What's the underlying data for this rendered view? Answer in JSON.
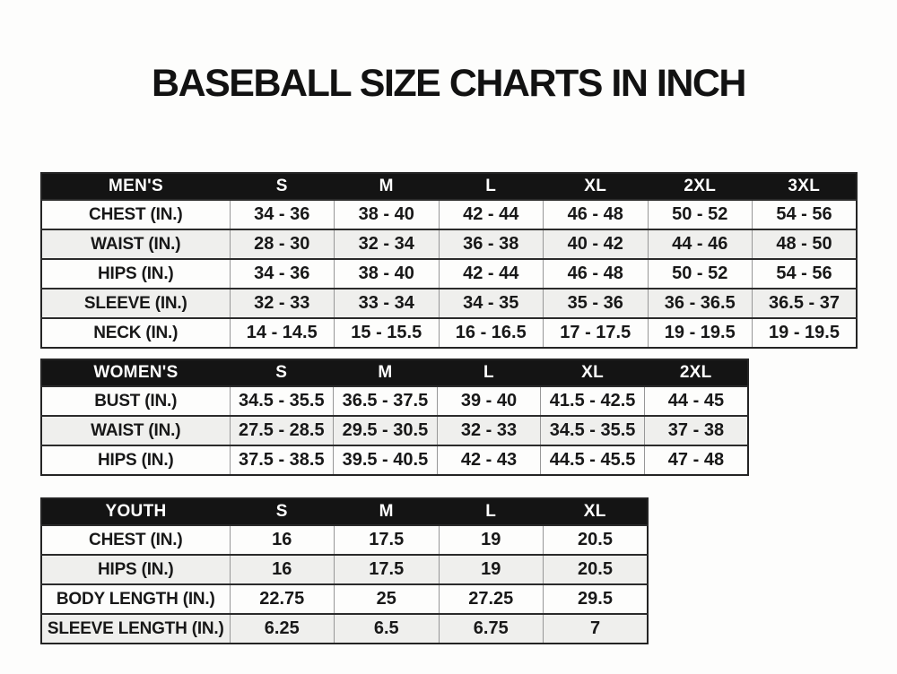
{
  "page": {
    "title": "BASEBALL SIZE CHARTS IN INCH"
  },
  "colors": {
    "page_bg": "#fdfdfc",
    "title_text": "#121212",
    "header_bg": "#141414",
    "header_text": "#ffffff",
    "row_bg": "#fdfdfc",
    "row_alt_bg": "#efefed",
    "cell_text": "#181818",
    "border_dark": "#2b2b2b",
    "border_light": "#979797"
  },
  "chart_data": [
    {
      "type": "table",
      "title": "MEN'S",
      "columns": [
        "S",
        "M",
        "L",
        "XL",
        "2XL",
        "3XL"
      ],
      "rows": [
        {
          "label": "CHEST (IN.)",
          "values": [
            "34 - 36",
            "38 - 40",
            "42 - 44",
            "46 - 48",
            "50 - 52",
            "54 - 56"
          ]
        },
        {
          "label": "WAIST (IN.)",
          "values": [
            "28 - 30",
            "32 - 34",
            "36 - 38",
            "40 - 42",
            "44 - 46",
            "48 - 50"
          ]
        },
        {
          "label": "HIPS (IN.)",
          "values": [
            "34 - 36",
            "38 - 40",
            "42 - 44",
            "46 - 48",
            "50 - 52",
            "54 - 56"
          ]
        },
        {
          "label": "SLEEVE (IN.)",
          "values": [
            "32 - 33",
            "33 - 34",
            "34 - 35",
            "35 - 36",
            "36 - 36.5",
            "36.5 - 37"
          ]
        },
        {
          "label": "NECK (IN.)",
          "values": [
            "14 - 14.5",
            "15 - 15.5",
            "16 - 16.5",
            "17 - 17.5",
            "19 - 19.5",
            "19 - 19.5"
          ]
        }
      ]
    },
    {
      "type": "table",
      "title": "WOMEN'S",
      "columns": [
        "S",
        "M",
        "L",
        "XL",
        "2XL"
      ],
      "rows": [
        {
          "label": "BUST (IN.)",
          "values": [
            "34.5 - 35.5",
            "36.5 - 37.5",
            "39 - 40",
            "41.5 - 42.5",
            "44 - 45"
          ]
        },
        {
          "label": "WAIST (IN.)",
          "values": [
            "27.5 - 28.5",
            "29.5 - 30.5",
            "32 - 33",
            "34.5 - 35.5",
            "37 - 38"
          ]
        },
        {
          "label": "HIPS (IN.)",
          "values": [
            "37.5 - 38.5",
            "39.5 - 40.5",
            "42 - 43",
            "44.5 - 45.5",
            "47 - 48"
          ]
        }
      ]
    },
    {
      "type": "table",
      "title": "YOUTH",
      "columns": [
        "S",
        "M",
        "L",
        "XL"
      ],
      "rows": [
        {
          "label": "CHEST (IN.)",
          "values": [
            "16",
            "17.5",
            "19",
            "20.5"
          ]
        },
        {
          "label": "HIPS (IN.)",
          "values": [
            "16",
            "17.5",
            "19",
            "20.5"
          ]
        },
        {
          "label": "BODY LENGTH (IN.)",
          "values": [
            "22.75",
            "25",
            "27.25",
            "29.5"
          ]
        },
        {
          "label": "SLEEVE LENGTH (IN.)",
          "values": [
            "6.25",
            "6.5",
            "6.75",
            "7"
          ]
        }
      ]
    }
  ]
}
